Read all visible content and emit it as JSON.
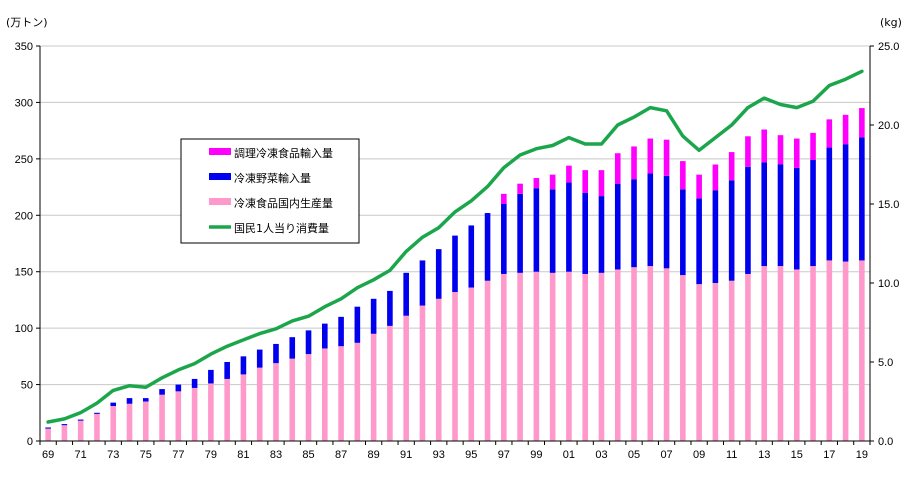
{
  "chart_data": {
    "type": "bar",
    "stacked": true,
    "left_unit": "(万トン)",
    "right_unit": "(kg)",
    "x_tick_labels": [
      "69",
      "71",
      "73",
      "75",
      "77",
      "79",
      "81",
      "83",
      "85",
      "87",
      "89",
      "91",
      "93",
      "95",
      "97",
      "99",
      "01",
      "03",
      "05",
      "07",
      "09",
      "11",
      "13",
      "15",
      "17",
      "19"
    ],
    "years": [
      "1969",
      "1970",
      "1971",
      "1972",
      "1973",
      "1974",
      "1975",
      "1976",
      "1977",
      "1978",
      "1979",
      "1980",
      "1981",
      "1982",
      "1983",
      "1984",
      "1985",
      "1986",
      "1987",
      "1988",
      "1989",
      "1990",
      "1991",
      "1992",
      "1993",
      "1994",
      "1995",
      "1996",
      "1997",
      "1998",
      "1999",
      "2000",
      "2001",
      "2002",
      "2003",
      "2004",
      "2005",
      "2006",
      "2007",
      "2008",
      "2009",
      "2010",
      "2011",
      "2012",
      "2013",
      "2014",
      "2015",
      "2016",
      "2017",
      "2018",
      "2019"
    ],
    "y_left_ticks": [
      "0",
      "50",
      "100",
      "150",
      "200",
      "250",
      "300",
      "350"
    ],
    "y_right_ticks": [
      "0.0",
      "5.0",
      "10.0",
      "15.0",
      "20.0",
      "25.0"
    ],
    "ylim_left": [
      0,
      350
    ],
    "ylim_right": [
      0,
      25
    ],
    "grid": "horizontal",
    "legend_position": "center-left",
    "series": [
      {
        "name": "冷凍食品国内生産量",
        "color": "#ff99cc",
        "axis": "left",
        "values": [
          11,
          14,
          18,
          24,
          31,
          33,
          35,
          41,
          44,
          47,
          51,
          55,
          59,
          65,
          69,
          73,
          77,
          82,
          84,
          87,
          95,
          102,
          111,
          120,
          126,
          132,
          136,
          142,
          148,
          149,
          150,
          149,
          150,
          148,
          149,
          152,
          154,
          155,
          153,
          147,
          139,
          140,
          142,
          148,
          155,
          155,
          152,
          155,
          160,
          159,
          160
        ]
      },
      {
        "name": "冷凍野菜輸入量",
        "color": "#0000ee",
        "axis": "left",
        "values": [
          1,
          1,
          1,
          1,
          3,
          5,
          3,
          5,
          6,
          8,
          12,
          15,
          16,
          16,
          17,
          19,
          21,
          22,
          26,
          32,
          31,
          31,
          38,
          40,
          44,
          50,
          55,
          60,
          62,
          70,
          74,
          74,
          79,
          72,
          68,
          76,
          78,
          82,
          82,
          76,
          76,
          82,
          89,
          95,
          92,
          90,
          90,
          94,
          100,
          104,
          109
        ]
      },
      {
        "name": "調理冷凍食品輸入量",
        "color": "#ff00ff",
        "axis": "left",
        "values": [
          0,
          0,
          0,
          0,
          0,
          0,
          0,
          0,
          0,
          0,
          0,
          0,
          0,
          0,
          0,
          0,
          0,
          0,
          0,
          0,
          0,
          0,
          0,
          0,
          0,
          0,
          0,
          0,
          9,
          9,
          9,
          13,
          15,
          20,
          23,
          27,
          29,
          31,
          32,
          25,
          21,
          23,
          25,
          27,
          29,
          26,
          26,
          24,
          25,
          26,
          26
        ]
      },
      {
        "name": "国民1人当り消費量",
        "color": "#1ca64c",
        "axis": "right",
        "type": "line",
        "values": [
          1.2,
          1.4,
          1.8,
          2.4,
          3.2,
          3.5,
          3.4,
          4.0,
          4.5,
          4.9,
          5.5,
          6.0,
          6.4,
          6.8,
          7.1,
          7.6,
          7.9,
          8.5,
          9.0,
          9.7,
          10.2,
          10.8,
          12.0,
          12.9,
          13.5,
          14.5,
          15.2,
          16.1,
          17.3,
          18.1,
          18.5,
          18.7,
          19.2,
          18.8,
          18.8,
          20.0,
          20.5,
          21.1,
          20.9,
          19.3,
          18.4,
          19.2,
          20.0,
          21.1,
          21.7,
          21.3,
          21.1,
          21.5,
          22.5,
          22.9,
          23.4
        ]
      }
    ]
  }
}
